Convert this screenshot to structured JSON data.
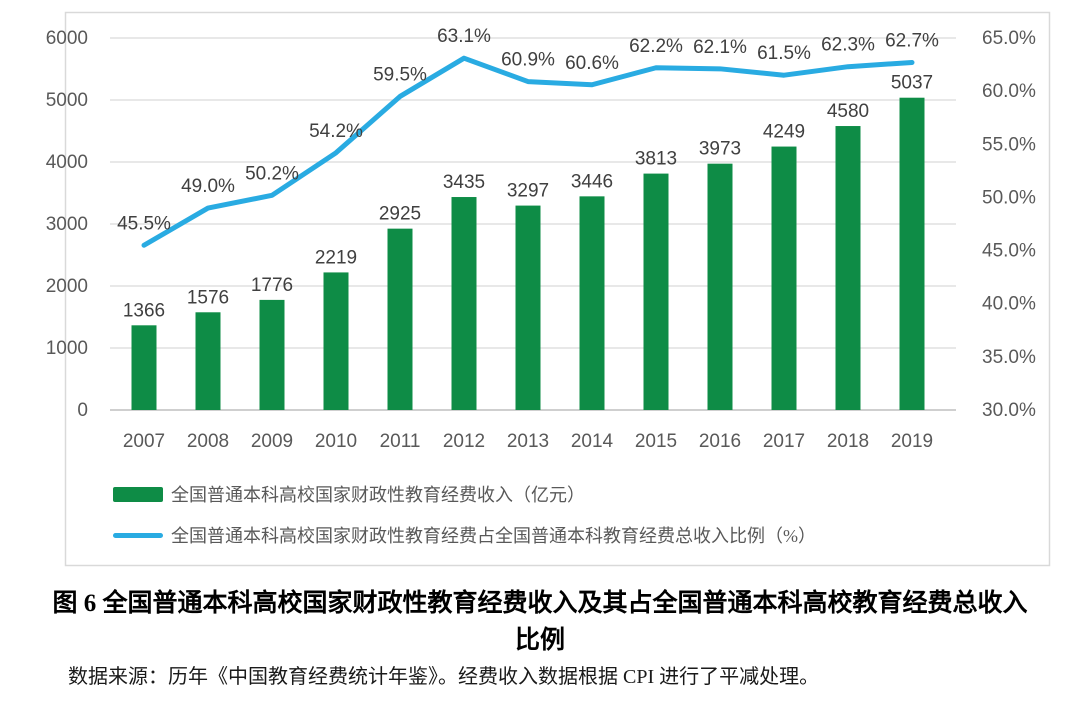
{
  "figure": {
    "caption_line1": "图 6 全国普通本科高校国家财政性教育经费收入及其占全国普通本科高校教育经费总收入",
    "caption_line2": "比例",
    "source_note": "数据来源：历年《中国教育经费统计年鉴》。经费收入数据根据 CPI 进行了平减处理。"
  },
  "colors": {
    "bar_green": "#0E8C46",
    "line_blue": "#29ABE2",
    "gridline": "#D9D9D9",
    "axis_line": "#BFBFBF",
    "frame_border": "#D9D9D9",
    "tick_text": "#595959",
    "data_label_text": "#404040"
  },
  "chart_data": {
    "type": "bar",
    "subtype": "combo-bar-line-dual-axis",
    "categories": [
      "2007",
      "2008",
      "2009",
      "2010",
      "2011",
      "2012",
      "2013",
      "2014",
      "2015",
      "2016",
      "2017",
      "2018",
      "2019"
    ],
    "series": [
      {
        "name": "全国普通本科高校国家财政性教育经费收入（亿元）",
        "type": "bar",
        "axis": "left",
        "color": "#0E8C46",
        "values": [
          1366,
          1576,
          1776,
          2219,
          2925,
          3435,
          3297,
          3446,
          3813,
          3973,
          4249,
          4580,
          5037
        ],
        "labels": [
          "1366",
          "1576",
          "1776",
          "2219",
          "2925",
          "3435",
          "3297",
          "3446",
          "3813",
          "3973",
          "4249",
          "4580",
          "5037"
        ]
      },
      {
        "name": "全国普通本科高校国家财政性教育经费占全国普通本科教育经费总收入比例（%）",
        "type": "line",
        "axis": "right",
        "color": "#29ABE2",
        "values": [
          45.5,
          49.0,
          50.2,
          54.2,
          59.5,
          63.1,
          60.9,
          60.6,
          62.2,
          62.1,
          61.5,
          62.3,
          62.7
        ],
        "labels": [
          "45.5%",
          "49.0%",
          "50.2%",
          "54.2%",
          "59.5%",
          "63.1%",
          "60.9%",
          "60.6%",
          "62.2%",
          "62.1%",
          "61.5%",
          "62.3%",
          "62.7%"
        ]
      }
    ],
    "left_axis": {
      "min": 0,
      "max": 6000,
      "step": 1000,
      "ticks": [
        "0",
        "1000",
        "2000",
        "3000",
        "4000",
        "5000",
        "6000"
      ]
    },
    "right_axis": {
      "min": 30,
      "max": 65,
      "step": 5,
      "ticks": [
        "30.0%",
        "35.0%",
        "40.0%",
        "45.0%",
        "50.0%",
        "55.0%",
        "60.0%",
        "65.0%"
      ]
    },
    "grid": true,
    "legend_position": "bottom-left",
    "title": "",
    "xlabel": "",
    "ylabel": ""
  }
}
